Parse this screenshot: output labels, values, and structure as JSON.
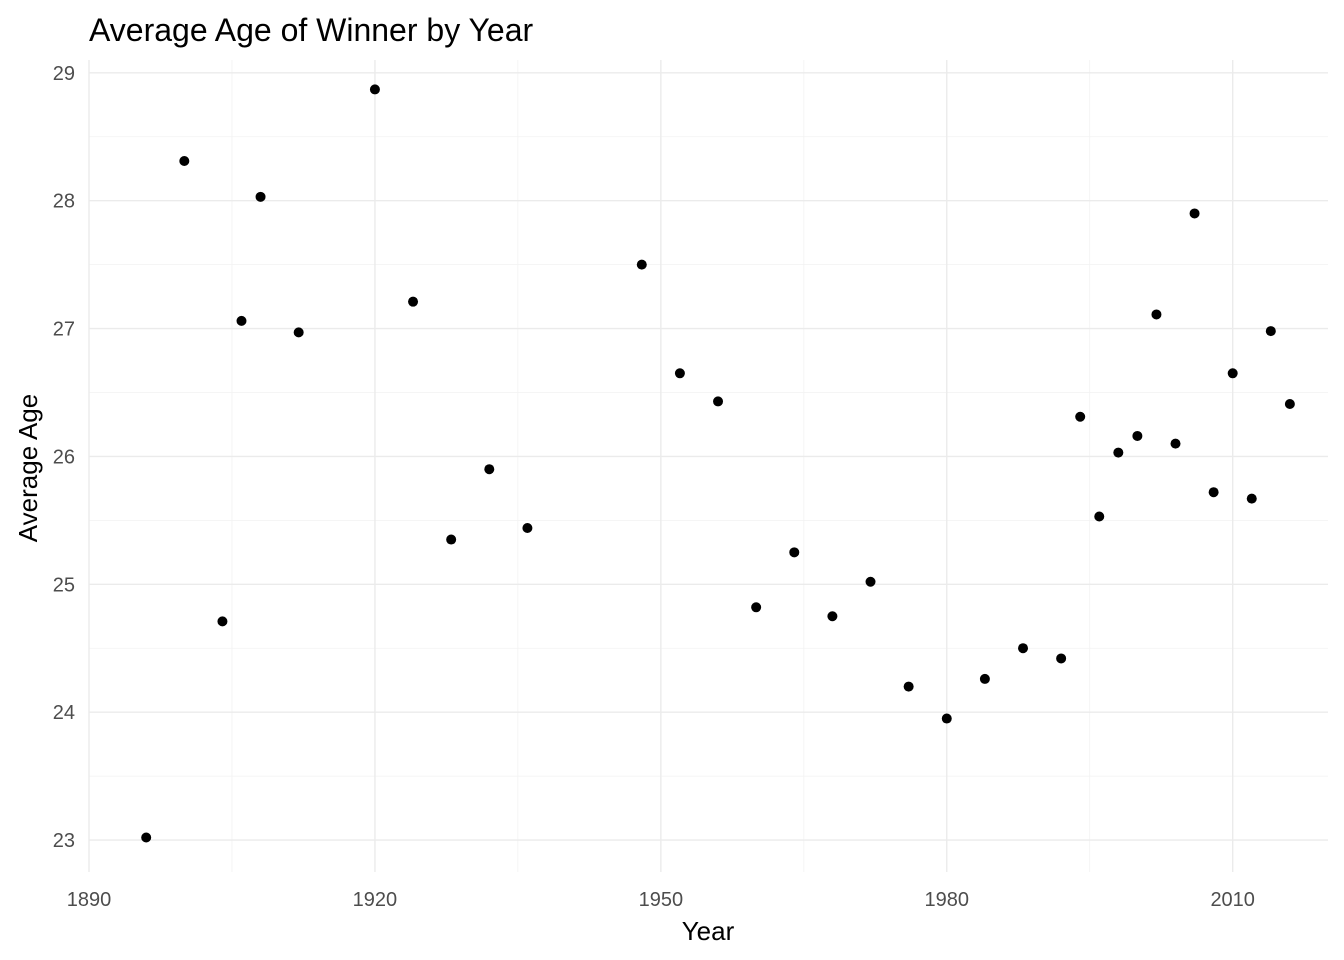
{
  "chart_data": {
    "type": "scatter",
    "title": "Average Age of Winner by Year",
    "xlabel": "Year",
    "ylabel": "Average Age",
    "xlim": [
      1890,
      2020
    ],
    "ylim": [
      22.75,
      29.1
    ],
    "x_ticks": [
      1890,
      1920,
      1950,
      1980,
      2010
    ],
    "y_ticks": [
      23,
      24,
      25,
      26,
      27,
      28,
      29
    ],
    "x_minor_ticks": [
      1905,
      1935,
      1965,
      1995
    ],
    "y_minor_ticks": [
      23.5,
      24.5,
      25.5,
      26.5,
      27.5,
      28.5
    ],
    "grid": true,
    "point_color": "#000000",
    "points": [
      {
        "x": 1896,
        "y": 23.02
      },
      {
        "x": 1900,
        "y": 28.31
      },
      {
        "x": 1904,
        "y": 24.71
      },
      {
        "x": 1906,
        "y": 27.06
      },
      {
        "x": 1908,
        "y": 28.03
      },
      {
        "x": 1912,
        "y": 26.97
      },
      {
        "x": 1920,
        "y": 28.87
      },
      {
        "x": 1924,
        "y": 27.21
      },
      {
        "x": 1928,
        "y": 25.35
      },
      {
        "x": 1932,
        "y": 25.9
      },
      {
        "x": 1936,
        "y": 25.44
      },
      {
        "x": 1948,
        "y": 27.5
      },
      {
        "x": 1952,
        "y": 26.65
      },
      {
        "x": 1956,
        "y": 26.43
      },
      {
        "x": 1960,
        "y": 24.82
      },
      {
        "x": 1964,
        "y": 25.25
      },
      {
        "x": 1968,
        "y": 24.75
      },
      {
        "x": 1972,
        "y": 25.02
      },
      {
        "x": 1976,
        "y": 24.2
      },
      {
        "x": 1980,
        "y": 23.95
      },
      {
        "x": 1984,
        "y": 24.26
      },
      {
        "x": 1988,
        "y": 24.5
      },
      {
        "x": 1992,
        "y": 24.42
      },
      {
        "x": 1994,
        "y": 26.31
      },
      {
        "x": 1996,
        "y": 25.53
      },
      {
        "x": 1998,
        "y": 26.03
      },
      {
        "x": 2000,
        "y": 26.16
      },
      {
        "x": 2002,
        "y": 27.11
      },
      {
        "x": 2004,
        "y": 26.1
      },
      {
        "x": 2006,
        "y": 27.9
      },
      {
        "x": 2008,
        "y": 25.72
      },
      {
        "x": 2010,
        "y": 26.65
      },
      {
        "x": 2012,
        "y": 25.67
      },
      {
        "x": 2014,
        "y": 26.98
      },
      {
        "x": 2016,
        "y": 26.41
      }
    ]
  }
}
